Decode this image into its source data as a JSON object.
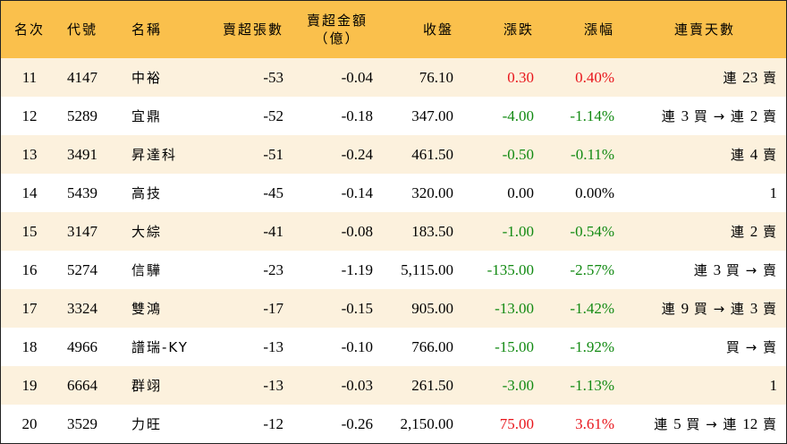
{
  "header": {
    "rank": "名次",
    "code": "代號",
    "name": "名稱",
    "net_shares": "賣超張數",
    "net_amount_line1": "賣超金額",
    "net_amount_line2": "（億）",
    "close": "收盤",
    "change": "漲跌",
    "pct": "漲幅",
    "streak": "連賣天數"
  },
  "rows": [
    {
      "rank": "11",
      "code": "4147",
      "name": "中裕",
      "shares": "-53",
      "amount": "-0.04",
      "close": "76.10",
      "change": "0.30",
      "pct": "0.40%",
      "trend": "up",
      "streak": "連 23 賣"
    },
    {
      "rank": "12",
      "code": "5289",
      "name": "宜鼎",
      "shares": "-52",
      "amount": "-0.18",
      "close": "347.00",
      "change": "-4.00",
      "pct": "-1.14%",
      "trend": "down",
      "streak": "連 3 買 → 連 2 賣"
    },
    {
      "rank": "13",
      "code": "3491",
      "name": "昇達科",
      "shares": "-51",
      "amount": "-0.24",
      "close": "461.50",
      "change": "-0.50",
      "pct": "-0.11%",
      "trend": "down",
      "streak": "連 4 賣"
    },
    {
      "rank": "14",
      "code": "5439",
      "name": "高技",
      "shares": "-45",
      "amount": "-0.14",
      "close": "320.00",
      "change": "0.00",
      "pct": "0.00%",
      "trend": "flat",
      "streak": "1"
    },
    {
      "rank": "15",
      "code": "3147",
      "name": "大綜",
      "shares": "-41",
      "amount": "-0.08",
      "close": "183.50",
      "change": "-1.00",
      "pct": "-0.54%",
      "trend": "down",
      "streak": "連 2 賣"
    },
    {
      "rank": "16",
      "code": "5274",
      "name": "信驊",
      "shares": "-23",
      "amount": "-1.19",
      "close": "5,115.00",
      "change": "-135.00",
      "pct": "-2.57%",
      "trend": "down",
      "streak": "連 3 買 → 賣"
    },
    {
      "rank": "17",
      "code": "3324",
      "name": "雙鴻",
      "shares": "-17",
      "amount": "-0.15",
      "close": "905.00",
      "change": "-13.00",
      "pct": "-1.42%",
      "trend": "down",
      "streak": "連 9 買 → 連 3 賣"
    },
    {
      "rank": "18",
      "code": "4966",
      "name": "譜瑞-KY",
      "shares": "-13",
      "amount": "-0.10",
      "close": "766.00",
      "change": "-15.00",
      "pct": "-1.92%",
      "trend": "down",
      "streak": "買 → 賣"
    },
    {
      "rank": "19",
      "code": "6664",
      "name": "群翊",
      "shares": "-13",
      "amount": "-0.03",
      "close": "261.50",
      "change": "-3.00",
      "pct": "-1.13%",
      "trend": "down",
      "streak": "1"
    },
    {
      "rank": "20",
      "code": "3529",
      "name": "力旺",
      "shares": "-12",
      "amount": "-0.26",
      "close": "2,150.00",
      "change": "75.00",
      "pct": "3.61%",
      "trend": "up",
      "streak": "連 5 買 → 連 12 賣"
    }
  ],
  "colors": {
    "header_bg": "#fac04c",
    "odd_row_bg": "#fcf1dd",
    "even_row_bg": "#ffffff",
    "up": "#e8151b",
    "down": "#128a12",
    "flat": "#000000"
  }
}
